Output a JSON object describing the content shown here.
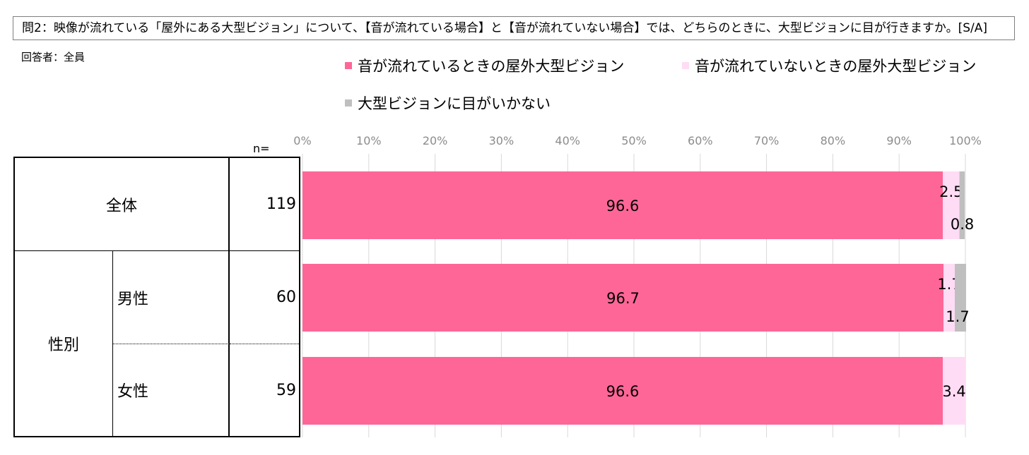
{
  "question": "問2：映像が流れている「屋外にある大型ビジョン」について、【音が流れている場合】と【音が流れていない場合】では、どちらのときに、大型ビジョンに目が行きますか。[S/A]",
  "respondents": "回答者：全員",
  "n_header": "n=",
  "colors": {
    "series1": "#ff6698",
    "series2": "#ffdcf5",
    "series3": "#bfbfbf",
    "grid": "#d9d9d9",
    "tick": "#8c8c8c"
  },
  "table": {
    "overall_label": "全体",
    "gender_label": "性別",
    "male_label": "男性",
    "female_label": "女性",
    "n_overall": "119",
    "n_male": "60",
    "n_female": "59"
  },
  "chart_data": {
    "type": "bar",
    "orientation": "horizontal",
    "stacked": true,
    "percent": true,
    "categories": [
      "全体",
      "男性",
      "女性"
    ],
    "series": [
      {
        "name": "音が流れているときの屋外大型ビジョン",
        "values": [
          96.6,
          96.7,
          96.6
        ]
      },
      {
        "name": "音が流れていないときの屋外大型ビジョン",
        "values": [
          2.5,
          1.7,
          3.4
        ]
      },
      {
        "name": "大型ビジョンに目がいかない",
        "values": [
          0.8,
          1.7,
          0
        ]
      }
    ],
    "data_labels": [
      [
        "96.6",
        "2.5",
        "0.8"
      ],
      [
        "96.7",
        "1.7",
        "1.7"
      ],
      [
        "96.6",
        "3.4",
        ""
      ]
    ],
    "xlim": [
      0,
      100
    ],
    "xticks": [
      "0%",
      "10%",
      "20%",
      "30%",
      "40%",
      "50%",
      "60%",
      "70%",
      "80%",
      "90%",
      "100%"
    ],
    "grid": true,
    "legend_position": "top"
  }
}
